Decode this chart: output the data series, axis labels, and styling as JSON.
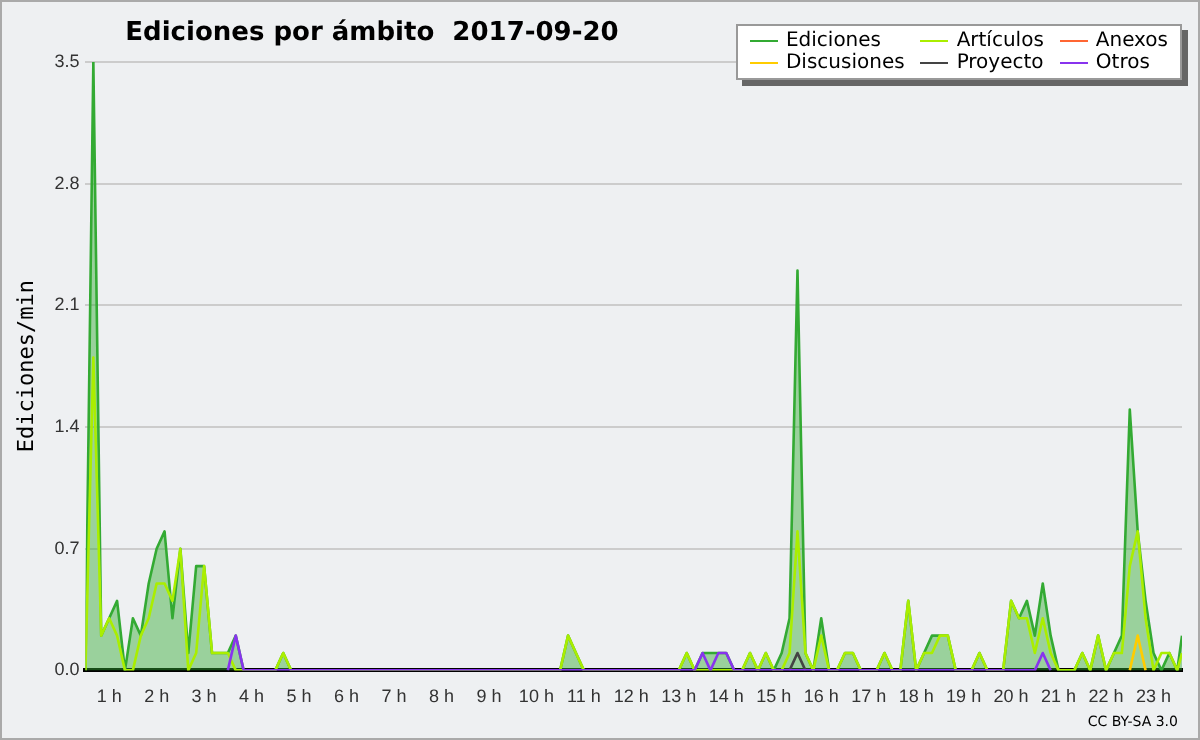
{
  "chart_data": {
    "type": "line",
    "title": "Ediciones por ámbito  2017-09-20",
    "ylabel": "Ediciones/min",
    "xlim": [
      0.5,
      23.6
    ],
    "xticks": [
      {
        "value": 1,
        "label": "1 h"
      },
      {
        "value": 2,
        "label": "2 h"
      },
      {
        "value": 3,
        "label": "3 h"
      },
      {
        "value": 4,
        "label": "4 h"
      },
      {
        "value": 5,
        "label": "5 h"
      },
      {
        "value": 6,
        "label": "6 h"
      },
      {
        "value": 7,
        "label": "7 h"
      },
      {
        "value": 8,
        "label": "8 h"
      },
      {
        "value": 9,
        "label": "9 h"
      },
      {
        "value": 10,
        "label": "10 h"
      },
      {
        "value": 11,
        "label": "11 h"
      },
      {
        "value": 12,
        "label": "12 h"
      },
      {
        "value": 13,
        "label": "13 h"
      },
      {
        "value": 14,
        "label": "14 h"
      },
      {
        "value": 15,
        "label": "15 h"
      },
      {
        "value": 16,
        "label": "16 h"
      },
      {
        "value": 17,
        "label": "17 h"
      },
      {
        "value": 18,
        "label": "18 h"
      },
      {
        "value": 19,
        "label": "19 h"
      },
      {
        "value": 20,
        "label": "20 h"
      },
      {
        "value": 21,
        "label": "21 h"
      },
      {
        "value": 22,
        "label": "22 h"
      },
      {
        "value": 23,
        "label": "23 h"
      }
    ],
    "ylim": [
      0,
      3.5
    ],
    "yticks": [
      {
        "value": 0,
        "label": "0.0"
      },
      0.7,
      1.4,
      2.1,
      2.8,
      3.5
    ],
    "grid": "y",
    "legend": "top right",
    "marker": "none",
    "line_style": "solid",
    "annotations": [
      "CC BY-SA 3.0"
    ],
    "series": [
      {
        "name": "Ediciones",
        "type": "area",
        "color": "#33aa33",
        "x": [
          0.5,
          0.667,
          0.833,
          1.0,
          1.167,
          1.333,
          1.5,
          1.667,
          1.833,
          2.0,
          2.167,
          2.333,
          2.5,
          2.667,
          2.833,
          3.0,
          3.167,
          3.333,
          3.5,
          3.667,
          3.833,
          4.5,
          4.667,
          4.833,
          10.5,
          10.667,
          10.833,
          11.0,
          13.0,
          13.167,
          13.333,
          13.5,
          13.667,
          13.833,
          14.0,
          14.167,
          14.333,
          14.5,
          14.667,
          14.833,
          15.0,
          15.167,
          15.333,
          15.5,
          15.667,
          15.833,
          16.0,
          16.167,
          16.333,
          16.5,
          16.667,
          16.833,
          17.167,
          17.333,
          17.5,
          17.667,
          17.833,
          18.0,
          18.167,
          18.333,
          18.5,
          18.667,
          18.833,
          19.167,
          19.333,
          19.5,
          19.833,
          20.0,
          20.167,
          20.333,
          20.5,
          20.667,
          20.833,
          21.0,
          21.333,
          21.5,
          21.667,
          21.833,
          22.0,
          22.167,
          22.333,
          22.5,
          22.667,
          22.833,
          23.0,
          23.167,
          23.333,
          23.5,
          23.6
        ],
        "values": [
          0,
          3.5,
          0.2,
          0.3,
          0.4,
          0,
          0.3,
          0.2,
          0.5,
          0.7,
          0.8,
          0.3,
          0.7,
          0.1,
          0.6,
          0.6,
          0.1,
          0.1,
          0.1,
          0.2,
          0,
          0,
          0.1,
          0,
          0,
          0.2,
          0.1,
          0,
          0,
          0.1,
          0,
          0.1,
          0.1,
          0.1,
          0.1,
          0,
          0,
          0.1,
          0,
          0.1,
          0,
          0.1,
          0.3,
          2.3,
          0.1,
          0,
          0.3,
          0,
          0,
          0.1,
          0.1,
          0,
          0,
          0.1,
          0,
          0,
          0.4,
          0,
          0.1,
          0.2,
          0.2,
          0.2,
          0,
          0,
          0.1,
          0,
          0,
          0.4,
          0.3,
          0.4,
          0.2,
          0.5,
          0.2,
          0,
          0,
          0.1,
          0,
          0.2,
          0,
          0.1,
          0.2,
          1.5,
          0.8,
          0.4,
          0.1,
          0,
          0.1,
          0,
          0.2
        ]
      },
      {
        "name": "Artículos",
        "type": "line",
        "color": "#aaee00",
        "x": [
          0.5,
          0.667,
          0.833,
          1.0,
          1.167,
          1.333,
          1.5,
          1.667,
          1.833,
          2.0,
          2.167,
          2.333,
          2.5,
          2.667,
          2.833,
          3.0,
          3.167,
          3.333,
          3.5,
          3.667,
          4.5,
          4.667,
          4.833,
          10.5,
          10.667,
          10.833,
          11.0,
          13.0,
          13.167,
          13.333,
          14.333,
          14.5,
          14.667,
          14.833,
          15.0,
          15.167,
          15.333,
          15.5,
          15.667,
          15.833,
          16.0,
          16.167,
          16.333,
          16.5,
          16.667,
          16.833,
          17.167,
          17.333,
          17.5,
          17.667,
          17.833,
          18.0,
          18.167,
          18.333,
          18.5,
          18.667,
          18.833,
          19.167,
          19.333,
          19.5,
          19.833,
          20.0,
          20.167,
          20.333,
          20.5,
          20.667,
          20.833,
          21.0,
          21.333,
          21.5,
          21.667,
          21.833,
          22.0,
          22.167,
          22.333,
          22.5,
          22.667,
          22.833,
          23.0,
          23.167,
          23.333,
          23.5,
          23.6
        ],
        "values": [
          0,
          1.8,
          0.2,
          0.3,
          0.2,
          0,
          0,
          0.2,
          0.3,
          0.5,
          0.5,
          0.4,
          0.7,
          0,
          0.1,
          0.6,
          0.1,
          0.1,
          0.1,
          0,
          0,
          0.1,
          0,
          0,
          0.2,
          0.1,
          0,
          0,
          0.1,
          0,
          0,
          0.1,
          0,
          0.1,
          0,
          0,
          0.1,
          0.8,
          0.1,
          0,
          0.2,
          0,
          0,
          0.1,
          0.1,
          0,
          0,
          0.1,
          0,
          0,
          0.4,
          0,
          0.1,
          0.1,
          0.2,
          0.2,
          0,
          0,
          0.1,
          0,
          0,
          0.4,
          0.3,
          0.3,
          0.1,
          0.3,
          0.1,
          0,
          0,
          0.1,
          0,
          0.2,
          0,
          0.1,
          0.1,
          0.6,
          0.8,
          0.3,
          0,
          0.1,
          0.1,
          0,
          0.1
        ]
      },
      {
        "name": "Anexos",
        "type": "line",
        "color": "#ff6633"
      },
      {
        "name": "Discusiones",
        "type": "line",
        "color": "#ffcc00",
        "x": [
          22.5,
          22.667,
          22.833
        ],
        "values": [
          0,
          0.2,
          0
        ]
      },
      {
        "name": "Proyecto",
        "type": "line",
        "color": "#444444",
        "x": [
          15.333,
          15.5,
          15.667
        ],
        "values": [
          0,
          0.1,
          0
        ]
      },
      {
        "name": "Otros",
        "type": "line",
        "color": "#8833ee",
        "x": [
          3.5,
          3.667,
          3.833,
          13.333,
          13.5,
          13.667,
          13.833,
          14.0,
          14.167,
          20.5,
          20.667,
          20.833
        ],
        "values": [
          0,
          0.2,
          0,
          0,
          0.1,
          0,
          0.1,
          0.1,
          0,
          0,
          0.1,
          0
        ]
      }
    ]
  }
}
